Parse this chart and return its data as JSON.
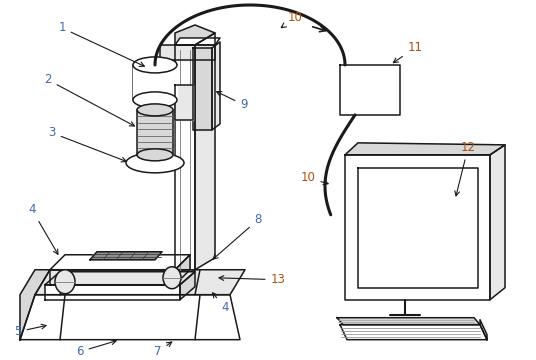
{
  "fig_width": 5.36,
  "fig_height": 3.6,
  "dpi": 100,
  "bg_color": "#ffffff",
  "line_color": "#1a1a1a",
  "lc_blue": "#4169b0",
  "lc_orange": "#b05010",
  "label_fontsize": 8.5
}
